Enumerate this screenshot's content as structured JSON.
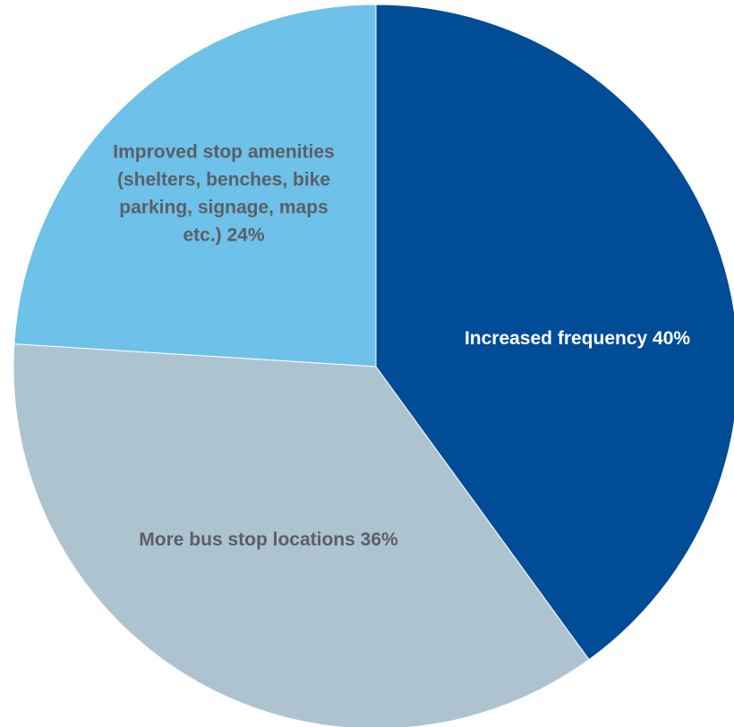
{
  "chart_data": {
    "type": "pie",
    "title": "",
    "slices": [
      {
        "label_lines": [
          "Increased frequency 40%"
        ],
        "value": 40,
        "color": "#004C97",
        "label_color": "#FFFFFF"
      },
      {
        "label_lines": [
          "More bus stop locations 36%"
        ],
        "value": 36,
        "color": "#AEC3D0",
        "label_color": "#5A5F66"
      },
      {
        "label_lines": [
          "Improved stop amenities",
          "(shelters, benches, bike",
          "parking, signage, maps",
          "etc.) 24%"
        ],
        "value": 24,
        "color": "#6EC1E8",
        "label_color": "#5A5F66"
      }
    ],
    "legend": "none",
    "start_angle": "12 o'clock",
    "direction": "clockwise"
  }
}
